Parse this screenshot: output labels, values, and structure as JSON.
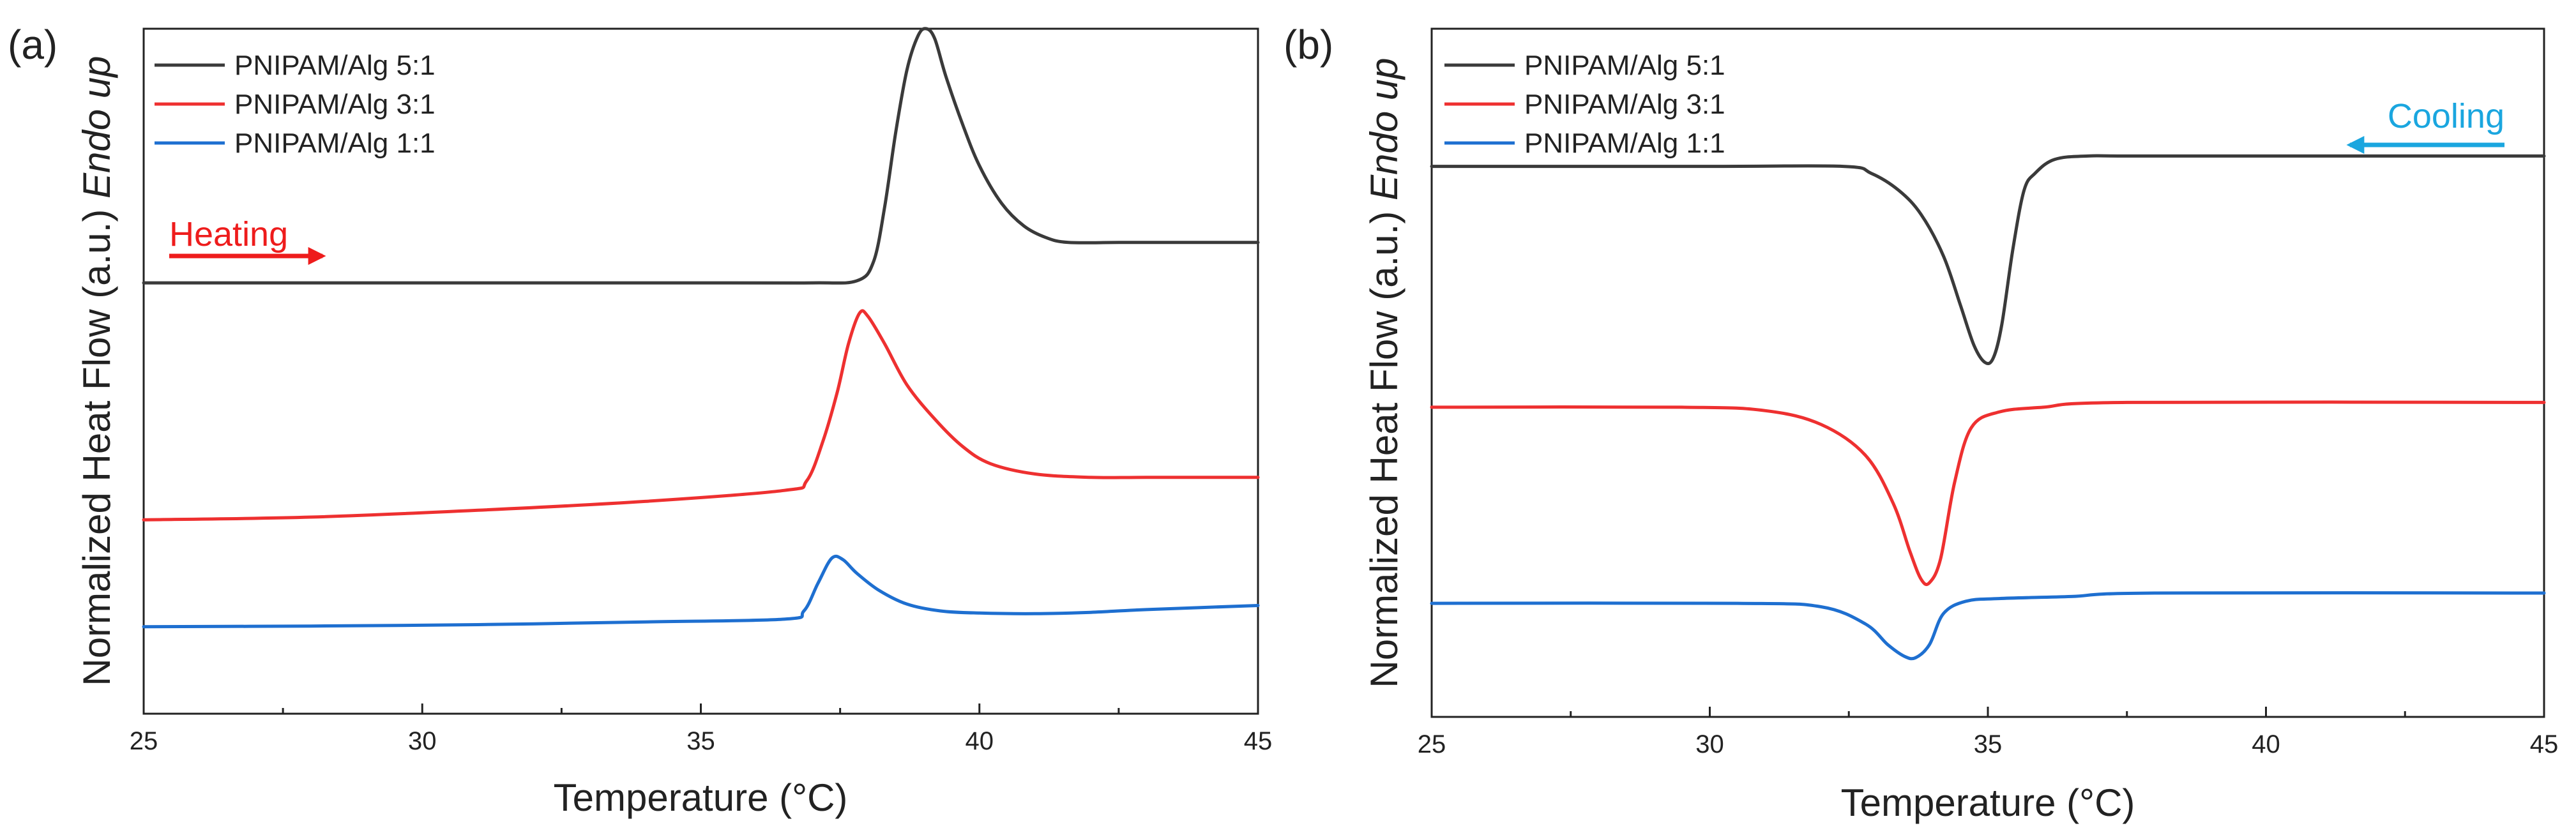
{
  "chart_data": [
    {
      "type": "line",
      "panel_label": "(a)",
      "xlabel": "Temperature (°C)",
      "ylabel_main": "Normalized Heat Flow (a.u.) ",
      "ylabel_italic": "Endo up",
      "xlim": [
        25,
        45
      ],
      "ylim": [
        0,
        1
      ],
      "xticks": [
        25,
        30,
        35,
        40,
        45
      ],
      "xtick_labels": [
        "25",
        "30",
        "35",
        "40",
        "45"
      ],
      "yticks": [],
      "legend_position": "top-left",
      "annotation": {
        "text": "Heating",
        "direction": "right",
        "color": "#ee1c1c",
        "x_start": 25.4,
        "x_end": 28.1,
        "y": 0.678
      },
      "series": [
        {
          "name": "PNIPAM/Alg 5:1",
          "color": "#3a3a3a",
          "x": [
            25,
            30,
            35,
            37,
            37.8,
            38.1,
            38.3,
            38.5,
            38.7,
            38.9,
            39.05,
            39.2,
            39.4,
            39.7,
            40.0,
            40.4,
            40.8,
            41.2,
            41.6,
            42.5,
            43.5,
            45
          ],
          "y": [
            0.629,
            0.629,
            0.629,
            0.629,
            0.632,
            0.66,
            0.74,
            0.85,
            0.94,
            0.99,
            1.0,
            0.985,
            0.93,
            0.86,
            0.8,
            0.745,
            0.712,
            0.695,
            0.688,
            0.688,
            0.688,
            0.688
          ]
        },
        {
          "name": "PNIPAM/Alg 3:1",
          "color": "#ee3030",
          "x": [
            25,
            28,
            31,
            34,
            36.5,
            36.9,
            37.2,
            37.45,
            37.65,
            37.85,
            38.0,
            38.3,
            38.7,
            39.2,
            39.7,
            40.2,
            41,
            42,
            43,
            45
          ],
          "y": [
            0.283,
            0.287,
            0.297,
            0.31,
            0.326,
            0.34,
            0.4,
            0.47,
            0.54,
            0.585,
            0.58,
            0.54,
            0.48,
            0.43,
            0.39,
            0.365,
            0.35,
            0.345,
            0.345,
            0.345
          ]
        },
        {
          "name": "PNIPAM/Alg 1:1",
          "color": "#1e6fd0",
          "x": [
            25,
            28,
            31,
            34,
            36.5,
            36.85,
            37.1,
            37.35,
            37.55,
            37.8,
            38.2,
            38.7,
            39.3,
            40,
            41,
            42,
            43,
            45
          ],
          "y": [
            0.127,
            0.128,
            0.13,
            0.134,
            0.138,
            0.15,
            0.19,
            0.227,
            0.225,
            0.205,
            0.18,
            0.16,
            0.15,
            0.147,
            0.146,
            0.148,
            0.152,
            0.158
          ]
        }
      ]
    },
    {
      "type": "line",
      "panel_label": "(b)",
      "xlabel": "Temperature (°C)",
      "ylabel_main": "Normalized Heat Flow (a.u.) ",
      "ylabel_italic": "Endo up",
      "xlim": [
        25,
        45
      ],
      "ylim": [
        0,
        1
      ],
      "xticks": [
        25,
        30,
        35,
        40,
        45
      ],
      "xtick_labels": [
        "25",
        "30",
        "35",
        "40",
        "45"
      ],
      "yticks": [],
      "legend_position": "top-left",
      "annotation": {
        "text": "Cooling",
        "direction": "left",
        "color": "#1aa6df",
        "x_start": 44.4,
        "x_end": 41.6,
        "y": 0.84
      },
      "series": [
        {
          "name": "PNIPAM/Alg 5:1",
          "color": "#3a3a3a",
          "x": [
            25,
            30,
            32.4,
            32.9,
            33.4,
            33.8,
            34.2,
            34.5,
            34.75,
            34.95,
            35.1,
            35.25,
            35.45,
            35.65,
            35.85,
            36.2,
            36.8,
            38,
            45
          ],
          "y": [
            0.8,
            0.8,
            0.8,
            0.79,
            0.765,
            0.73,
            0.67,
            0.6,
            0.54,
            0.515,
            0.522,
            0.57,
            0.68,
            0.765,
            0.79,
            0.81,
            0.815,
            0.815,
            0.815
          ]
        },
        {
          "name": "PNIPAM/Alg 3:1",
          "color": "#ee3030",
          "x": [
            25,
            29.5,
            31,
            32,
            32.8,
            33.3,
            33.6,
            33.8,
            33.95,
            34.15,
            34.4,
            34.7,
            35.2,
            36,
            37.5,
            45
          ],
          "y": [
            0.45,
            0.45,
            0.445,
            0.425,
            0.38,
            0.31,
            0.24,
            0.2,
            0.195,
            0.23,
            0.34,
            0.42,
            0.443,
            0.45,
            0.457,
            0.457
          ]
        },
        {
          "name": "PNIPAM/Alg 1:1",
          "color": "#1e6fd0",
          "x": [
            25,
            30.5,
            32,
            32.8,
            33.2,
            33.5,
            33.7,
            33.95,
            34.2,
            34.6,
            35.2,
            36.5,
            38,
            45
          ],
          "y": [
            0.165,
            0.165,
            0.16,
            0.135,
            0.105,
            0.088,
            0.086,
            0.105,
            0.15,
            0.168,
            0.172,
            0.175,
            0.18,
            0.18
          ]
        }
      ]
    }
  ]
}
